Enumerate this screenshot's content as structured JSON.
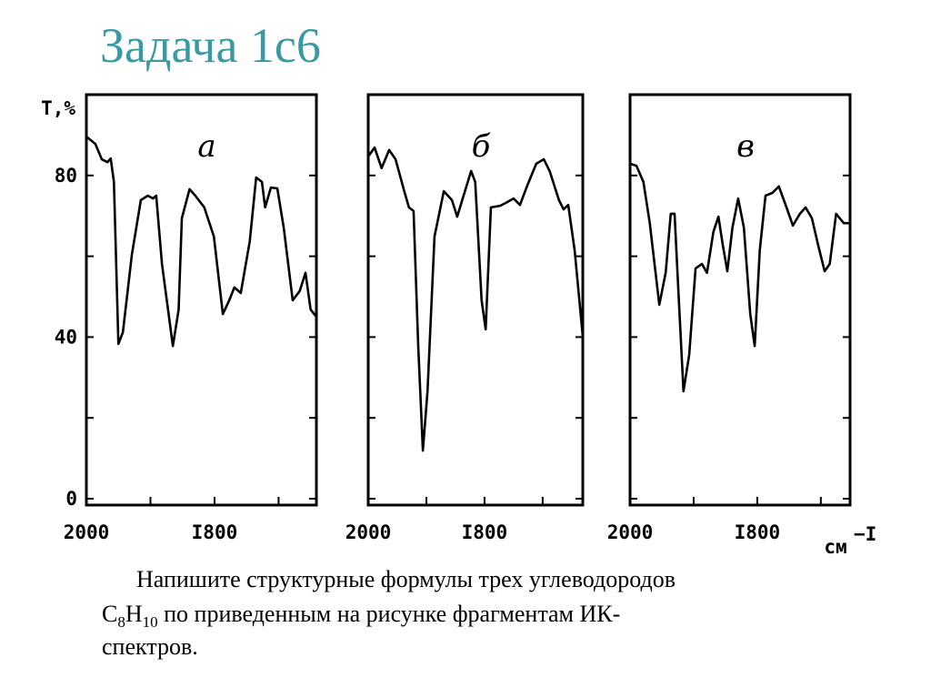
{
  "slide_title": "Задача 1с6",
  "chart_data": [
    {
      "type": "line",
      "title": "а",
      "ylabel": "T,%",
      "xlim": [
        2000,
        1641
      ],
      "ylim": [
        0,
        100
      ],
      "xticks": [
        2000,
        {
          "value": 1800,
          "label": "I800"
        }
      ],
      "minor_xticks": [
        1900,
        1700
      ],
      "yticks": [
        0,
        40,
        80
      ],
      "minor_yticks": [
        20,
        60
      ],
      "grid": false,
      "series": [
        {
          "color": "#000000",
          "x": [
            2000,
            1986,
            1976,
            1967,
            1962,
            1957,
            1950,
            1943,
            1929,
            1915,
            1904,
            1896,
            1891,
            1882,
            1865,
            1856,
            1851,
            1839,
            1830,
            1816,
            1801,
            1787,
            1777,
            1769,
            1759,
            1745,
            1735,
            1726,
            1721,
            1712,
            1702,
            1692,
            1678,
            1667,
            1658,
            1650,
            1641
          ],
          "values": [
            89.6,
            87.8,
            84,
            83.3,
            84.2,
            78.4,
            38.3,
            41.2,
            60.4,
            73.9,
            75,
            74.3,
            75,
            58.1,
            37.8,
            46.8,
            69.4,
            76.6,
            75,
            72.1,
            64.9,
            45.7,
            49.1,
            52.3,
            50.9,
            63.7,
            79.5,
            78.4,
            72.1,
            77,
            76.8,
            67.1,
            49.1,
            51.4,
            55.9,
            46.8,
            45
          ]
        }
      ]
    },
    {
      "type": "line",
      "title": "б",
      "xlim": [
        2000,
        1631
      ],
      "ylim": [
        0,
        100
      ],
      "xticks": [
        2000,
        {
          "value": 1800,
          "label": "I800"
        }
      ],
      "minor_xticks": [
        1900,
        1700
      ],
      "yticks": [
        0,
        40,
        80
      ],
      "minor_yticks": [
        20,
        60
      ],
      "grid": false,
      "show_ytick_labels": false,
      "series": [
        {
          "color": "#000000",
          "x": [
            2000,
            1989,
            1977,
            1964,
            1953,
            1938,
            1930,
            1922,
            1914,
            1906,
            1898,
            1886,
            1870,
            1856,
            1847,
            1836,
            1823,
            1816,
            1805,
            1798,
            1789,
            1773,
            1761,
            1750,
            1739,
            1727,
            1711,
            1698,
            1688,
            1672,
            1664,
            1656,
            1645,
            1631
          ],
          "values": [
            84.7,
            86.9,
            81.8,
            86.3,
            84,
            76.1,
            72.1,
            71.2,
            37.8,
            11.9,
            26.6,
            64.9,
            76.1,
            73.9,
            69.8,
            75,
            81.1,
            78.4,
            49.1,
            41.9,
            72.1,
            72.5,
            73.4,
            74.3,
            72.7,
            77.3,
            82.9,
            84,
            81.1,
            73.9,
            71.6,
            72.7,
            61.5,
            40.1
          ]
        }
      ]
    },
    {
      "type": "line",
      "title": "в",
      "xlabel": "см",
      "xlabel_exponent": "−I",
      "xlim": [
        2000,
        1654
      ],
      "ylim": [
        0,
        100
      ],
      "xticks": [
        2000,
        {
          "value": 1800,
          "label": "I800"
        }
      ],
      "minor_xticks": [
        1900,
        1700
      ],
      "yticks": [
        0,
        40,
        80
      ],
      "minor_yticks": [
        20,
        60
      ],
      "grid": false,
      "show_ytick_labels": false,
      "series": [
        {
          "color": "#000000",
          "x": [
            2000,
            1990,
            1979,
            1969,
            1954,
            1944,
            1936,
            1930,
            1924,
            1916,
            1907,
            1897,
            1887,
            1879,
            1869,
            1861,
            1854,
            1847,
            1839,
            1830,
            1821,
            1811,
            1804,
            1796,
            1787,
            1776,
            1766,
            1754,
            1744,
            1733,
            1724,
            1714,
            1704,
            1694,
            1686,
            1676,
            1664,
            1654
          ],
          "values": [
            82.9,
            82.4,
            78.4,
            68.2,
            48,
            55.9,
            70.5,
            70.5,
            51.4,
            26.6,
            35.6,
            57,
            58.1,
            55.9,
            66,
            69.8,
            62.6,
            56.3,
            67.1,
            74.3,
            67.1,
            45.7,
            37.8,
            61.5,
            75,
            75.7,
            77.3,
            72.1,
            67.6,
            70.5,
            72.1,
            69.4,
            62.6,
            56.3,
            58.1,
            70.5,
            68.2,
            68.2
          ]
        }
      ]
    }
  ],
  "task": {
    "line1": "Напишите структурные формулы трех углеводородов",
    "line2": [
      "C",
      "8",
      "H",
      "10",
      " по приведенным на рисунке фрагментам ИК-"
    ],
    "line3": "спектров."
  }
}
